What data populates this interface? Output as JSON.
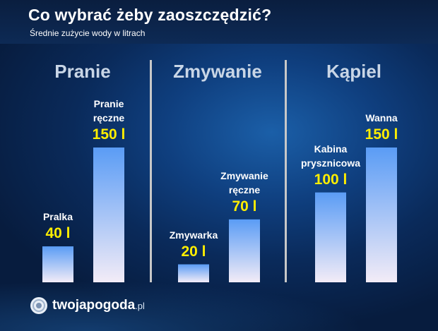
{
  "title": "Co wybrać żeby zaoszczędzić?",
  "subtitle": "Średnie zużycie wody w litrach",
  "groups": [
    "Pranie",
    "Zmywanie",
    "Kąpiel"
  ],
  "logo": {
    "name": "twojapogoda",
    "tld": ".pl"
  },
  "colors": {
    "bar_top": "#5a9cf5",
    "bar_bottom": "#f3ecf7",
    "value_text": "#ffee00"
  },
  "chart_data": {
    "type": "bar",
    "categories": [
      "Pralka",
      "Pranie ręczne",
      "Zmywarka",
      "Zmywanie ręczne",
      "Kabina prysznicowa",
      "Wanna"
    ],
    "category_lines": [
      [
        "Pralka"
      ],
      [
        "Pranie",
        "ręczne"
      ],
      [
        "Zmywarka"
      ],
      [
        "Zmywanie",
        "ręczne"
      ],
      [
        "Kabina",
        "prysznicowa"
      ],
      [
        "Wanna"
      ]
    ],
    "groups": [
      "Pranie",
      "Pranie",
      "Zmywanie",
      "Zmywanie",
      "Kąpiel",
      "Kąpiel"
    ],
    "values": [
      40,
      150,
      20,
      70,
      100,
      150
    ],
    "value_labels": [
      "40 l",
      "150 l",
      "20 l",
      "70 l",
      "100 l",
      "150 l"
    ],
    "unit": "l",
    "ylim": [
      0,
      150
    ],
    "grid": false,
    "legend": "none"
  }
}
